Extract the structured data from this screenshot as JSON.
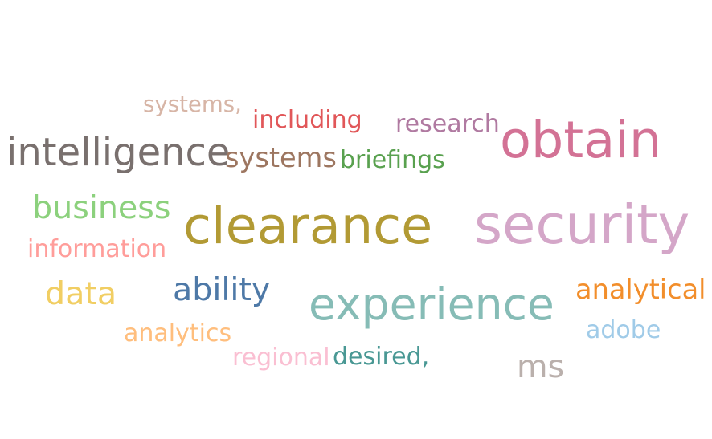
{
  "chart_data": {
    "type": "wordcloud",
    "words": [
      {
        "text": "security",
        "weight": 5.6,
        "color": "#d4a6c8"
      },
      {
        "text": "clearance",
        "weight": 5.3,
        "color": "#b29a34"
      },
      {
        "text": "obtain",
        "weight": 5.3,
        "color": "#d37295"
      },
      {
        "text": "experience",
        "weight": 4.6,
        "color": "#86bcb6"
      },
      {
        "text": "intelligence",
        "weight": 4.0,
        "color": "#79706e"
      },
      {
        "text": "business",
        "weight": 3.3,
        "color": "#8cd17d"
      },
      {
        "text": "ability",
        "weight": 3.3,
        "color": "#4e79a7"
      },
      {
        "text": "data",
        "weight": 3.3,
        "color": "#f1ce63"
      },
      {
        "text": "ms",
        "weight": 3.3,
        "color": "#bab0ac"
      },
      {
        "text": "systems",
        "weight": 2.8,
        "color": "#9d7660"
      },
      {
        "text": "analytical",
        "weight": 2.8,
        "color": "#f28e2b"
      },
      {
        "text": "research",
        "weight": 2.5,
        "color": "#b07aa1"
      },
      {
        "text": "including",
        "weight": 2.5,
        "color": "#e15759"
      },
      {
        "text": "briefings",
        "weight": 2.5,
        "color": "#59a14f"
      },
      {
        "text": "information",
        "weight": 2.5,
        "color": "#ff9d9a"
      },
      {
        "text": "analytics",
        "weight": 2.5,
        "color": "#ffbe7d"
      },
      {
        "text": "adobe",
        "weight": 2.5,
        "color": "#a0cbe8"
      },
      {
        "text": "desired,",
        "weight": 2.5,
        "color": "#499894"
      },
      {
        "text": "regional",
        "weight": 2.5,
        "color": "#fabfd2"
      },
      {
        "text": "systems,",
        "weight": 2.3,
        "color": "#d7b5a6"
      }
    ]
  }
}
